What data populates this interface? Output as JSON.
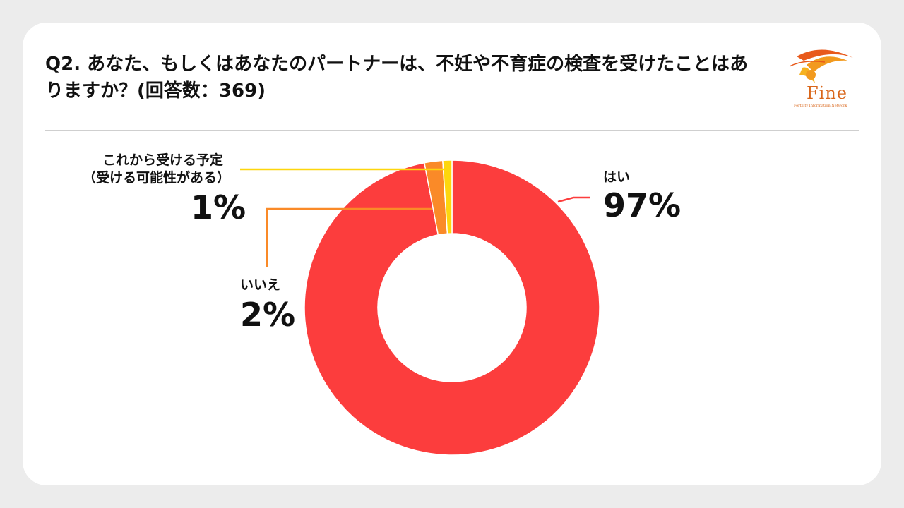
{
  "title": "Q2. あなた、もしくはあなたのパートナーは、不妊や不育症の検査を受けたことはありますか？(回答数：369)",
  "logo": {
    "text": "Fine",
    "subtext": "Fertility Information Network"
  },
  "chart_data": {
    "type": "pie",
    "donut": true,
    "slices": [
      {
        "label": "はい",
        "value": 97,
        "display": "97%",
        "color": "#fc3d3d"
      },
      {
        "label": "いいえ",
        "value": 2,
        "display": "2%",
        "color": "#fa8a28"
      },
      {
        "label_lines": [
          "これから受ける予定",
          "（受ける可能性がある）"
        ],
        "value": 1,
        "display": "1%",
        "color": "#fdd60d"
      }
    ]
  }
}
